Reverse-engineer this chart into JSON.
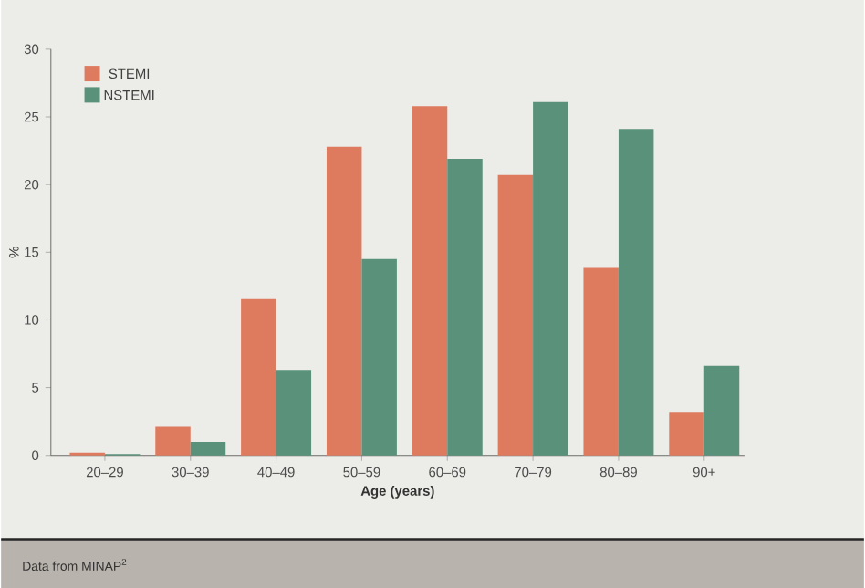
{
  "chart_data": {
    "type": "bar",
    "xlabel": "Age (years)",
    "ylabel": "%",
    "categories": [
      "20–29",
      "30–39",
      "40–49",
      "50–59",
      "60–69",
      "70–79",
      "80–89",
      "90+"
    ],
    "series": [
      {
        "name": "STEMI",
        "color": "#de7b5f",
        "values": [
          0.2,
          2.1,
          11.6,
          22.8,
          25.8,
          20.7,
          13.9,
          3.2
        ]
      },
      {
        "name": "NSTEMI",
        "color": "#5a917a",
        "values": [
          0.1,
          1.0,
          6.3,
          14.5,
          21.9,
          26.1,
          24.1,
          6.6
        ]
      }
    ],
    "ylim": [
      0,
      30
    ],
    "yticks": [
      0,
      5,
      10,
      15,
      20,
      25,
      30
    ],
    "legend": "top left",
    "grid": false,
    "annotations": [
      "Data from MINAP$^{2}$"
    ]
  }
}
